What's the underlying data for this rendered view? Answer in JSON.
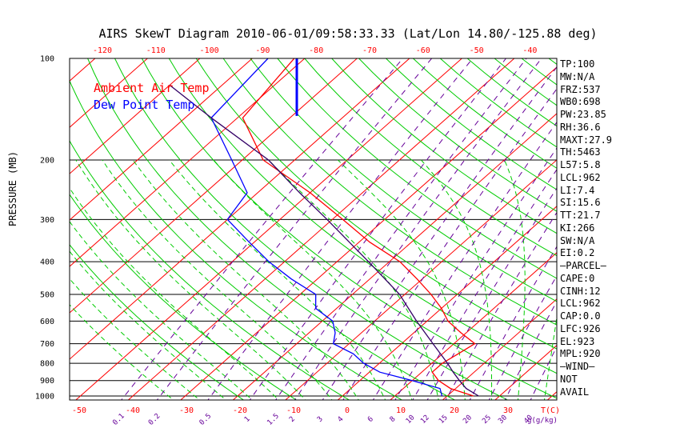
{
  "title": "AIRS SkewT Diagram 2010-06-01/09:58:33.33 (Lat/Lon 14.80/-125.88 deg)",
  "legend": {
    "air": "Ambient Air Temp",
    "dew": "Dew Point Temp"
  },
  "colors": {
    "air": "#ff0000",
    "dew": "#0000ff",
    "parcel": "#330066",
    "isotherm": "#ff0000",
    "dry_adiabat": "#00cc00",
    "moist_adiabat": "#00cc00",
    "mixing_ratio": "#660099"
  },
  "stats": [
    "TP:100",
    "MW:N/A",
    "FRZ:537",
    "WB0:698",
    "PW:23.85",
    "RH:36.6",
    "MAXT:27.9",
    "TH:5463",
    "L57:5.8",
    "LCL:962",
    "LI:7.4",
    "SI:15.6",
    "TT:21.7",
    "KI:266",
    "SW:N/A",
    "EI:0.2",
    "—PARCEL—",
    "CAPE:0",
    "CINH:12",
    "LCL:962",
    "CAP:0.0",
    "LFC:926",
    "EL:923",
    "MPL:920",
    "—WIND—",
    "NOT",
    "AVAIL"
  ],
  "chart_data": {
    "type": "line",
    "title": "AIRS SkewT Diagram 2010-06-01/09:58:33.33 (Lat/Lon 14.80/-125.88 deg)",
    "ylabel": "PRESSURE (MB)",
    "y_scale": "log",
    "ylim": [
      1050,
      100
    ],
    "pressure_ticks": [
      "100",
      "200",
      "300",
      "400",
      "500",
      "600",
      "700",
      "800",
      "900",
      "1000"
    ],
    "top_temp_ticks": [
      "-120",
      "-110",
      "-100",
      "-90",
      "-80",
      "-70",
      "-60",
      "-50",
      "-40"
    ],
    "bottom_temp_ticks": [
      "-50",
      "-40",
      "-30",
      "-20",
      "-10",
      "0",
      "10",
      "20",
      "30"
    ],
    "bottom_temp_unit": "T(C)",
    "mixing_ratio_labels": [
      "0.1",
      "0.2",
      "0.5",
      "1",
      "1.5",
      "2",
      "3",
      "4",
      "6",
      "8",
      "10",
      "12",
      "15",
      "20",
      "25",
      "30",
      "40"
    ],
    "mixing_ratio_unit": "g(g/kg)",
    "series": [
      {
        "name": "Ambient Air Temp",
        "p": [
          100,
          150,
          200,
          250,
          300,
          350,
          400,
          450,
          500,
          550,
          600,
          650,
          700,
          750,
          800,
          850,
          900,
          950,
          1000
        ],
        "t": [
          -82,
          -79,
          -66,
          -50,
          -38,
          -28,
          -18,
          -11,
          -5,
          0,
          4,
          9,
          14,
          13,
          12,
          12,
          15,
          19,
          25
        ]
      },
      {
        "name": "Dew Point Temp",
        "p": [
          100,
          150,
          200,
          250,
          300,
          350,
          400,
          450,
          500,
          550,
          600,
          650,
          700,
          750,
          800,
          850,
          900,
          950,
          1000
        ],
        "t": [
          -87,
          -85,
          -72,
          -62,
          -60,
          -51,
          -43,
          -35,
          -27,
          -24,
          -18,
          -15,
          -13,
          -7,
          -3,
          2,
          10,
          17,
          19
        ]
      },
      {
        "p": [
          1000,
          950,
          900,
          850,
          800,
          700,
          600,
          500,
          400,
          300,
          250,
          200,
          150,
          120
        ],
        "t": [
          26,
          22,
          19,
          16,
          13,
          6,
          -2,
          -11,
          -24,
          -41,
          -52,
          -65,
          -85,
          -100
        ]
      }
    ]
  }
}
